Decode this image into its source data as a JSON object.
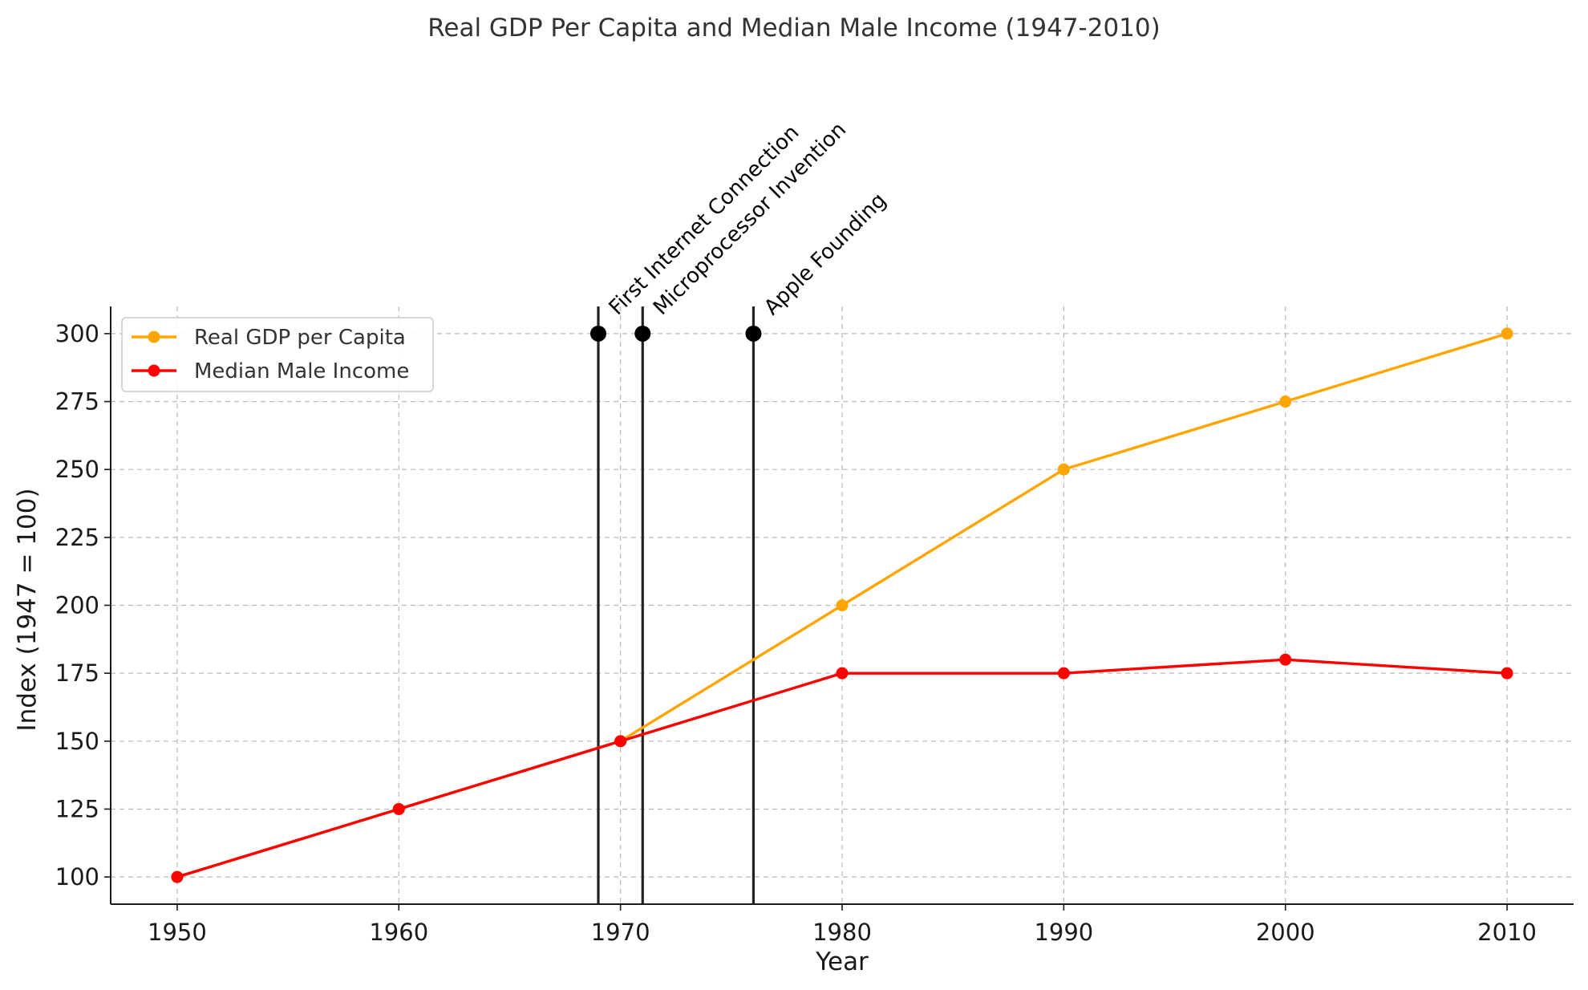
{
  "chart_data": {
    "type": "line",
    "title": "Real GDP Per Capita and Median Male Income (1947-2010)",
    "xlabel": "Year",
    "ylabel": "Index (1947 = 100)",
    "xlim": [
      1947,
      2013
    ],
    "ylim": [
      90,
      310
    ],
    "x_ticks": [
      1950,
      1960,
      1970,
      1980,
      1990,
      2000,
      2010
    ],
    "y_ticks": [
      100,
      125,
      150,
      175,
      200,
      225,
      250,
      275,
      300
    ],
    "grid": true,
    "legend_position": "top-left",
    "x": [
      1950,
      1960,
      1970,
      1980,
      1990,
      2000,
      2010
    ],
    "series": [
      {
        "name": "Real GDP per Capita",
        "color": "#FFA500",
        "values": [
          100,
          125,
          150,
          200,
          250,
          275,
          300
        ]
      },
      {
        "name": "Median Male Income",
        "color": "#FF0000",
        "values": [
          100,
          125,
          150,
          175,
          175,
          180,
          175
        ]
      }
    ],
    "annotations": [
      {
        "label": "First Internet Connection",
        "x": 1969,
        "y": 300
      },
      {
        "label": "Microprocessor Invention",
        "x": 1971,
        "y": 300
      },
      {
        "label": "Apple Founding",
        "x": 1976,
        "y": 300
      }
    ]
  }
}
